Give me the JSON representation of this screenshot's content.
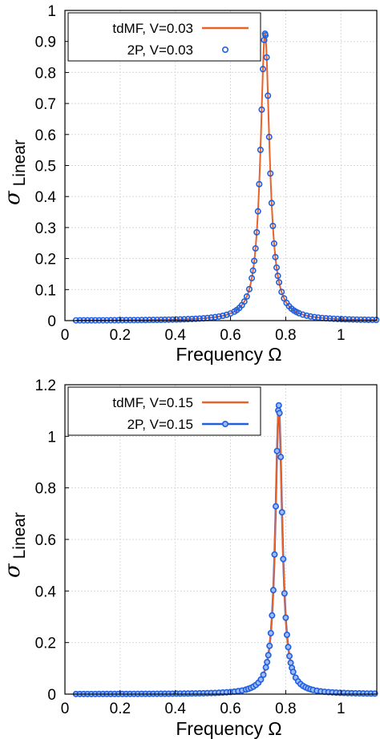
{
  "colors": {
    "tdmf": "#e8622a",
    "two_p": "#1f5fe0",
    "grid": "#d9d9d9",
    "frame": "#000000"
  },
  "chart_data": [
    {
      "type": "line",
      "xlabel": "Frequency Ω",
      "ylabel_main": "σ",
      "ylabel_sub": "Linear",
      "xlim": [
        0,
        1.13
      ],
      "ylim": [
        0,
        1.0
      ],
      "xticks": [
        0,
        0.2,
        0.4,
        0.6,
        0.8,
        1
      ],
      "xtick_labels": [
        "0",
        "0.2",
        "0.4",
        "0.6",
        "0.8",
        "1"
      ],
      "yticks": [
        0,
        0.1,
        0.2,
        0.3,
        0.4,
        0.5,
        0.6,
        0.7,
        0.8,
        0.9,
        1
      ],
      "ytick_labels": [
        "0",
        "0.1",
        "0.2",
        "0.3",
        "0.4",
        "0.5",
        "0.6",
        "0.7",
        "0.8",
        "0.9",
        "1"
      ],
      "grid": true,
      "legend_position": "top-left",
      "peak": {
        "x": 0.725,
        "y": 0.925,
        "width": 0.02
      },
      "x_range": [
        0.04,
        1.13
      ],
      "series": [
        {
          "name": "tdMF, V=0.03",
          "style": "line",
          "color_key": "tdmf"
        },
        {
          "name": "2P, V=0.03",
          "style": "markers",
          "color_key": "two_p"
        }
      ]
    },
    {
      "type": "line",
      "xlabel": "Frequency Ω",
      "ylabel_main": "σ",
      "ylabel_sub": "Linear",
      "xlim": [
        0,
        1.13
      ],
      "ylim": [
        0,
        1.2
      ],
      "xticks": [
        0,
        0.2,
        0.4,
        0.6,
        0.8,
        1
      ],
      "xtick_labels": [
        "0",
        "0.2",
        "0.4",
        "0.6",
        "0.8",
        "1"
      ],
      "yticks": [
        0,
        0.2,
        0.4,
        0.6,
        0.8,
        1,
        1.2
      ],
      "ytick_labels": [
        "0",
        "0.2",
        "0.4",
        "0.6",
        "0.8",
        "1",
        "1.2"
      ],
      "grid": true,
      "legend_position": "top-left",
      "peak": {
        "x": 0.775,
        "y": 1.12,
        "width": 0.015
      },
      "x_range": [
        0.04,
        1.13
      ],
      "series": [
        {
          "name": "tdMF, V=0.15",
          "style": "line",
          "color_key": "tdmf"
        },
        {
          "name": "2P, V=0.15",
          "style": "line-markers",
          "color_key": "two_p"
        }
      ]
    }
  ]
}
